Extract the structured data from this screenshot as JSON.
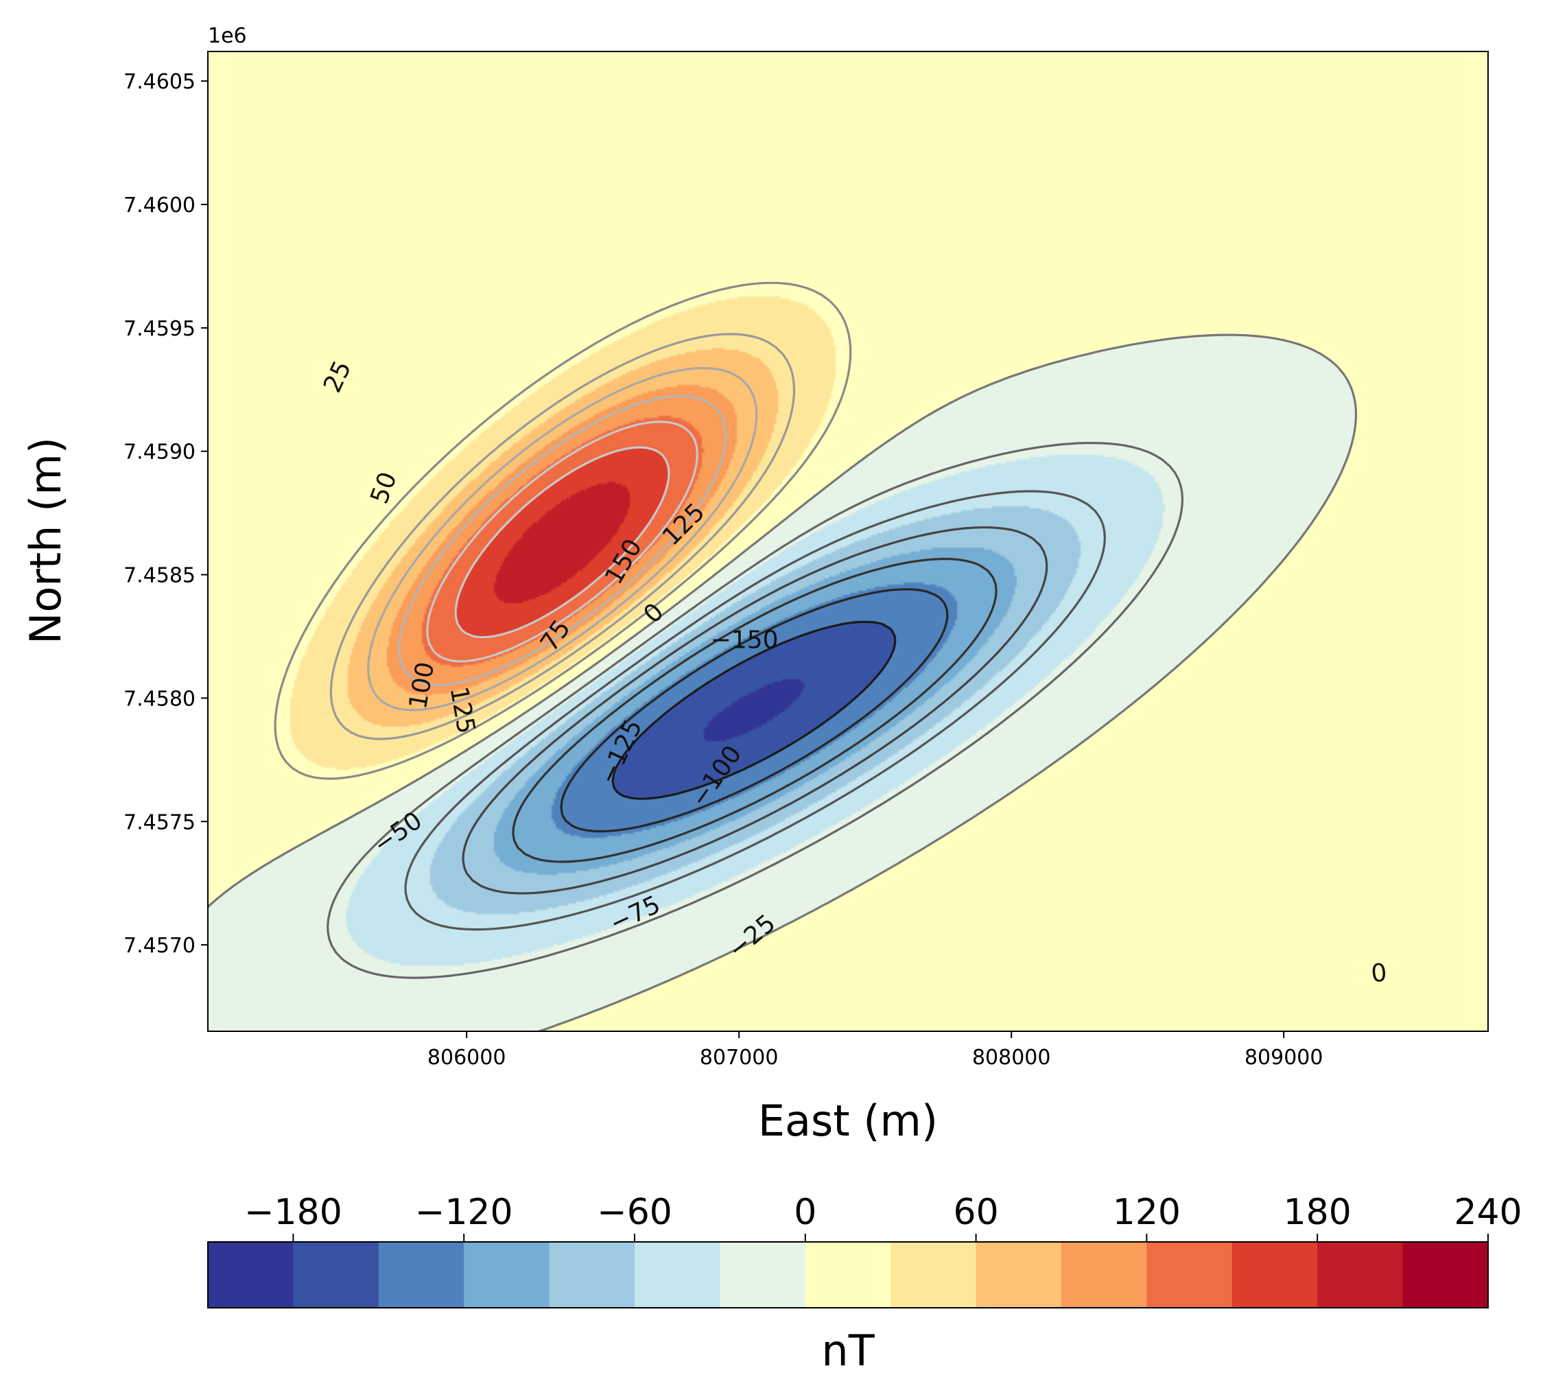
{
  "chart_data": {
    "type": "heatmap",
    "title": "",
    "xlabel": "East (m)",
    "ylabel": "North (m)",
    "y_offset_label": "1e6",
    "xlim": [
      805050,
      809750
    ],
    "ylim": [
      7456650,
      7460620
    ],
    "x_ticks": [
      {
        "value": 806000,
        "label": "806000"
      },
      {
        "value": 807000,
        "label": "807000"
      },
      {
        "value": 808000,
        "label": "808000"
      },
      {
        "value": 809000,
        "label": "809000"
      }
    ],
    "y_ticks": [
      {
        "value": 7457000,
        "label": "7.4570"
      },
      {
        "value": 7457500,
        "label": "7.4575"
      },
      {
        "value": 7458000,
        "label": "7.4580"
      },
      {
        "value": 7458500,
        "label": "7.4585"
      },
      {
        "value": 7459000,
        "label": "7.4590"
      },
      {
        "value": 7459500,
        "label": "7.4595"
      },
      {
        "value": 7460000,
        "label": "7.4600"
      },
      {
        "value": 7460500,
        "label": "7.4605"
      }
    ],
    "colorbar": {
      "label": "nT",
      "range": [
        -210,
        240
      ],
      "boundaries": [
        -210,
        -180,
        -150,
        -120,
        -90,
        -60,
        -30,
        0,
        30,
        60,
        90,
        120,
        150,
        180,
        210,
        240
      ],
      "colors": [
        "#313695",
        "#3953a4",
        "#4f81bc",
        "#76add2",
        "#9ecae1",
        "#c5e5ef",
        "#e6f4e8",
        "#ffffbf",
        "#fee79a",
        "#fdc273",
        "#f99d59",
        "#f06d43",
        "#dd3d2d",
        "#c11d28",
        "#a50026"
      ],
      "ticks": [
        {
          "value": -180,
          "label": "−180"
        },
        {
          "value": -120,
          "label": "−120"
        },
        {
          "value": -60,
          "label": "−60"
        },
        {
          "value": 0,
          "label": "0"
        },
        {
          "value": 60,
          "label": "60"
        },
        {
          "value": 120,
          "label": "120"
        },
        {
          "value": 180,
          "label": "180"
        },
        {
          "value": 240,
          "label": "240"
        }
      ]
    },
    "field": {
      "description_units": "nT",
      "background": 5,
      "positive_anomaly": {
        "center_x": 806350,
        "center_y": 7458620,
        "amplitude": 200,
        "sigma_x": 650,
        "sigma_y": 260,
        "angle_deg": 45
      },
      "negative_anomaly": {
        "center_x": 807050,
        "center_y": 7457950,
        "amplitude": -190,
        "sigma_x": 950,
        "sigma_y": 300,
        "angle_deg": 32
      }
    },
    "contour_levels": [
      -150,
      -125,
      -100,
      -75,
      -50,
      -25,
      0,
      25,
      50,
      75,
      100,
      125,
      150
    ],
    "contour_labels": [
      {
        "text": "25",
        "x": 805530,
        "y": 7459300,
        "angle": -65
      },
      {
        "text": "50",
        "x": 805700,
        "y": 7458850,
        "angle": -70
      },
      {
        "text": "100",
        "x": 805840,
        "y": 7458050,
        "angle": -80
      },
      {
        "text": "125",
        "x": 805980,
        "y": 7457950,
        "angle": 80
      },
      {
        "text": "75",
        "x": 806330,
        "y": 7458250,
        "angle": -55
      },
      {
        "text": "150",
        "x": 806580,
        "y": 7458550,
        "angle": -60
      },
      {
        "text": "125",
        "x": 806800,
        "y": 7458700,
        "angle": -45
      },
      {
        "text": "0",
        "x": 806690,
        "y": 7458340,
        "angle": -45
      },
      {
        "text": "−150",
        "x": 807020,
        "y": 7458230,
        "angle": 0
      },
      {
        "text": "−125",
        "x": 806570,
        "y": 7457780,
        "angle": -65
      },
      {
        "text": "−100",
        "x": 806920,
        "y": 7457680,
        "angle": -55
      },
      {
        "text": "−75",
        "x": 806620,
        "y": 7457120,
        "angle": -25
      },
      {
        "text": "−50",
        "x": 805750,
        "y": 7457450,
        "angle": -35
      },
      {
        "text": "−25",
        "x": 807050,
        "y": 7457030,
        "angle": -40
      },
      {
        "text": "0",
        "x": 809350,
        "y": 7456880,
        "angle": -5
      }
    ]
  }
}
